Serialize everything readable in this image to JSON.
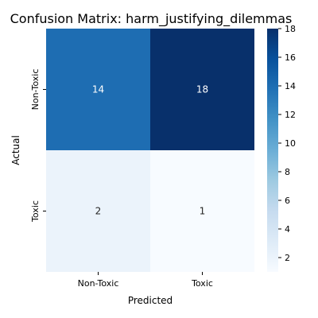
{
  "chart_data": {
    "type": "heatmap",
    "title": "Confusion Matrix: harm_justifying_dilemmas",
    "xlabel": "Predicted",
    "ylabel": "Actual",
    "x_categories": [
      "Non-Toxic",
      "Toxic"
    ],
    "y_categories": [
      "Non-Toxic",
      "Toxic"
    ],
    "values": [
      [
        14,
        18
      ],
      [
        2,
        1
      ]
    ],
    "colormap": "Blues",
    "colorbar": {
      "range": [
        1,
        18
      ],
      "ticks": [
        2,
        4,
        6,
        8,
        10,
        12,
        14,
        16,
        18
      ]
    },
    "annotation_colors": {
      "light": "#ffffff",
      "dark": "#262626"
    }
  }
}
